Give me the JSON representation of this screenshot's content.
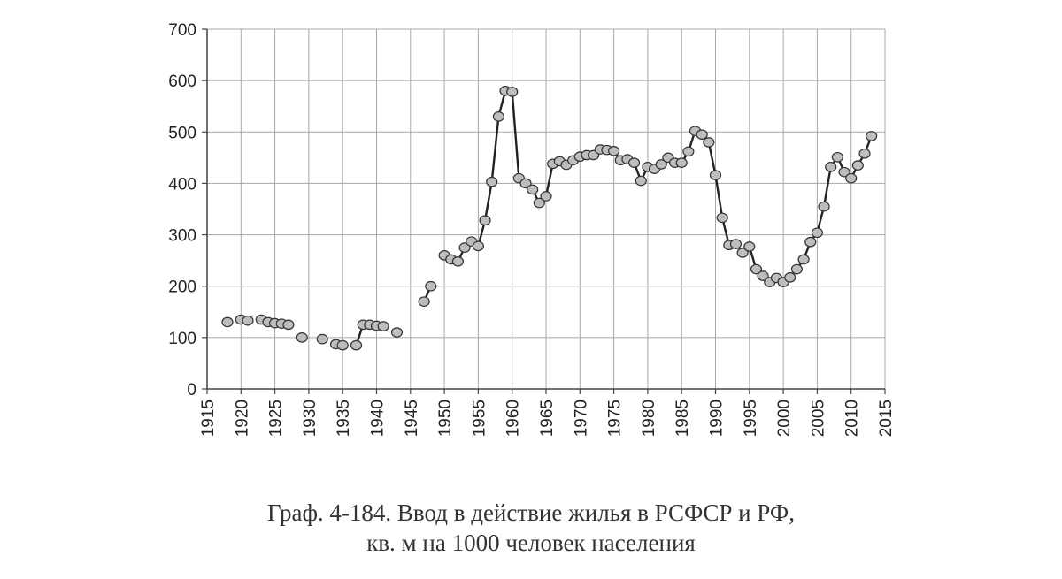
{
  "caption": {
    "line1": "Граф. 4-184. Ввод в действие жилья в РСФСР и РФ,",
    "line2": "кв. м на 1000 человек населения"
  },
  "chart_data": {
    "type": "line",
    "title": "Граф. 4-184. Ввод в действие жилья в РСФСР и РФ, кв. м на 1000 человек населения",
    "xlabel": "",
    "ylabel": "",
    "xlim": [
      1915,
      2015
    ],
    "ylim": [
      0,
      700
    ],
    "x_ticks": [
      1915,
      1920,
      1925,
      1930,
      1935,
      1940,
      1945,
      1950,
      1955,
      1960,
      1965,
      1970,
      1975,
      1980,
      1985,
      1990,
      1995,
      2000,
      2005,
      2010,
      2015
    ],
    "y_ticks": [
      0,
      100,
      200,
      300,
      400,
      500,
      600,
      700
    ],
    "grid": true,
    "legend": "none",
    "colors": {
      "line": "#222222",
      "marker_fill": "#bdbdbd",
      "marker_stroke": "#333333",
      "grid": "#a8a8a8",
      "axis": "#444444"
    },
    "series": [
      {
        "segments": [
          [
            [
              1918,
              130
            ]
          ],
          [
            [
              1920,
              135
            ],
            [
              1921,
              133
            ]
          ],
          [
            [
              1923,
              135
            ],
            [
              1924,
              130
            ],
            [
              1925,
              128
            ],
            [
              1926,
              127
            ],
            [
              1927,
              125
            ]
          ],
          [
            [
              1929,
              100
            ]
          ],
          [
            [
              1932,
              97
            ]
          ],
          [
            [
              1934,
              87
            ],
            [
              1935,
              85
            ]
          ],
          [
            [
              1937,
              85
            ],
            [
              1938,
              125
            ],
            [
              1939,
              125
            ],
            [
              1940,
              123
            ],
            [
              1941,
              122
            ]
          ],
          [
            [
              1943,
              110
            ]
          ],
          [
            [
              1947,
              170
            ],
            [
              1948,
              200
            ]
          ],
          [
            [
              1950,
              260
            ],
            [
              1951,
              252
            ],
            [
              1952,
              248
            ],
            [
              1953,
              275
            ],
            [
              1954,
              287
            ],
            [
              1955,
              278
            ],
            [
              1956,
              328
            ],
            [
              1957,
              403
            ],
            [
              1958,
              530
            ],
            [
              1959,
              580
            ],
            [
              1960,
              578
            ],
            [
              1961,
              410
            ],
            [
              1962,
              400
            ],
            [
              1963,
              388
            ],
            [
              1964,
              362
            ],
            [
              1965,
              375
            ],
            [
              1966,
              438
            ],
            [
              1967,
              443
            ],
            [
              1968,
              436
            ],
            [
              1969,
              445
            ],
            [
              1970,
              452
            ],
            [
              1971,
              455
            ],
            [
              1972,
              455
            ],
            [
              1973,
              466
            ],
            [
              1974,
              465
            ],
            [
              1975,
              463
            ],
            [
              1976,
              445
            ],
            [
              1977,
              447
            ],
            [
              1978,
              440
            ],
            [
              1979,
              405
            ],
            [
              1980,
              432
            ],
            [
              1981,
              428
            ],
            [
              1982,
              437
            ],
            [
              1983,
              450
            ],
            [
              1984,
              440
            ],
            [
              1985,
              440
            ],
            [
              1986,
              462
            ],
            [
              1987,
              502
            ],
            [
              1988,
              495
            ],
            [
              1989,
              480
            ],
            [
              1990,
              416
            ],
            [
              1991,
              333
            ],
            [
              1992,
              280
            ],
            [
              1993,
              282
            ],
            [
              1994,
              265
            ],
            [
              1995,
              277
            ],
            [
              1996,
              233
            ],
            [
              1997,
              220
            ],
            [
              1998,
              208
            ],
            [
              1999,
              216
            ],
            [
              2000,
              208
            ],
            [
              2001,
              217
            ],
            [
              2002,
              233
            ],
            [
              2003,
              252
            ],
            [
              2004,
              286
            ],
            [
              2005,
              304
            ],
            [
              2006,
              355
            ],
            [
              2007,
              432
            ],
            [
              2008,
              451
            ],
            [
              2009,
              422
            ],
            [
              2010,
              410
            ],
            [
              2011,
              435
            ],
            [
              2012,
              458
            ],
            [
              2013,
              492
            ]
          ]
        ]
      }
    ]
  }
}
